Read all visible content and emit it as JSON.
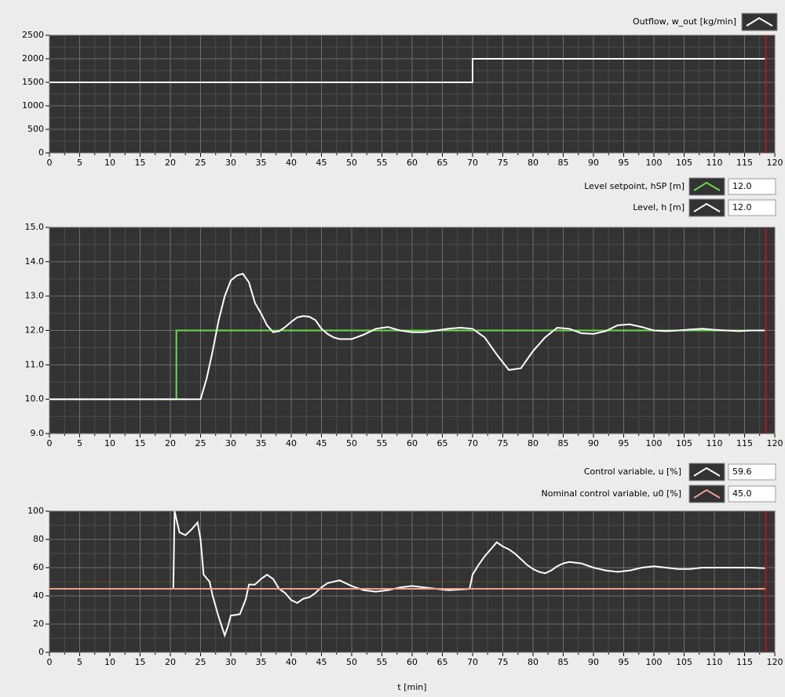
{
  "chart_data": [
    {
      "type": "line",
      "xlim": [
        0,
        120
      ],
      "xticks": [
        0,
        5,
        10,
        15,
        20,
        25,
        30,
        35,
        40,
        45,
        50,
        55,
        60,
        65,
        70,
        75,
        80,
        85,
        90,
        95,
        100,
        105,
        110,
        115,
        120
      ],
      "ylim": [
        0,
        2500
      ],
      "yticks": [
        0,
        500,
        1000,
        1500,
        2000,
        2500
      ],
      "grid": true,
      "cursor_x": 118.5,
      "series": [
        {
          "name": "Outflow, w_out [kg/min]",
          "color": "#ffffff",
          "x": [
            0,
            70,
            70,
            118.5
          ],
          "values": [
            1500,
            1500,
            2000,
            2000
          ]
        }
      ]
    },
    {
      "type": "line",
      "xlim": [
        0,
        120
      ],
      "xticks": [
        0,
        5,
        10,
        15,
        20,
        25,
        30,
        35,
        40,
        45,
        50,
        55,
        60,
        65,
        70,
        75,
        80,
        85,
        90,
        95,
        100,
        105,
        110,
        115,
        120
      ],
      "ylim": [
        9,
        15
      ],
      "yticks": [
        {
          "value": 9,
          "label": "9.0"
        },
        {
          "value": 10,
          "label": "10.0"
        },
        {
          "value": 11,
          "label": "11.0"
        },
        {
          "value": 12,
          "label": "12.0"
        },
        {
          "value": 13,
          "label": "13.0"
        },
        {
          "value": 14,
          "label": "14.0"
        },
        {
          "value": 15,
          "label": "15.0"
        }
      ],
      "grid": true,
      "cursor_x": 118.5,
      "series": [
        {
          "name": "Level setpoint, hSP [m]",
          "color": "#66dd44",
          "readout": "12.0",
          "x": [
            0,
            21,
            21,
            118.5
          ],
          "values": [
            10,
            10,
            12,
            12
          ]
        },
        {
          "name": "Level, h [m]",
          "color": "#ffffff",
          "readout": "12.0",
          "x": [
            0,
            25,
            26,
            27,
            28,
            29,
            30,
            31,
            32,
            33,
            34,
            35,
            36,
            37,
            38,
            39,
            40,
            41,
            42,
            43,
            44,
            45,
            46,
            47,
            48,
            50,
            52,
            54,
            56,
            58,
            60,
            62,
            64,
            66,
            68,
            70,
            72,
            74,
            76,
            78,
            80,
            82,
            84,
            86,
            88,
            90,
            92,
            94,
            96,
            98,
            100,
            102,
            104,
            106,
            108,
            110,
            112,
            114,
            116,
            118.5
          ],
          "values": [
            10,
            10,
            10.6,
            11.4,
            12.3,
            13.0,
            13.45,
            13.6,
            13.65,
            13.4,
            12.8,
            12.5,
            12.15,
            11.95,
            11.98,
            12.1,
            12.25,
            12.38,
            12.42,
            12.4,
            12.3,
            12.05,
            11.9,
            11.8,
            11.75,
            11.75,
            11.88,
            12.05,
            12.1,
            12.0,
            11.95,
            11.95,
            12.0,
            12.05,
            12.08,
            12.05,
            11.8,
            11.3,
            10.85,
            10.9,
            11.4,
            11.8,
            12.08,
            12.05,
            11.92,
            11.9,
            11.98,
            12.15,
            12.18,
            12.1,
            12.0,
            11.98,
            12.0,
            12.03,
            12.05,
            12.02,
            12.0,
            11.98,
            12.0,
            12.0
          ]
        }
      ]
    },
    {
      "type": "line",
      "xlim": [
        0,
        120
      ],
      "xticks": [
        0,
        5,
        10,
        15,
        20,
        25,
        30,
        35,
        40,
        45,
        50,
        55,
        60,
        65,
        70,
        75,
        80,
        85,
        90,
        95,
        100,
        105,
        110,
        115,
        120
      ],
      "ylim": [
        0,
        100
      ],
      "yticks": [
        0,
        20,
        40,
        60,
        80,
        100
      ],
      "grid": true,
      "cursor_x": 118.5,
      "xlabel": "t [min]",
      "series": [
        {
          "name": "Control variable, u [%]",
          "color": "#ffffff",
          "readout": "59.6",
          "x": [
            0,
            20.5,
            20.7,
            21.5,
            22.5,
            23.5,
            24.5,
            25,
            25.5,
            26.5,
            27,
            28,
            29,
            29.5,
            30,
            31.5,
            32.5,
            33,
            34,
            35,
            36,
            37,
            38,
            39,
            40,
            41,
            42,
            43,
            44,
            45,
            46,
            48,
            49,
            50,
            52,
            54,
            56,
            58,
            60,
            62,
            64,
            66,
            68,
            69.5,
            70,
            71,
            72,
            73,
            74,
            75,
            76,
            77,
            78,
            79,
            80,
            81,
            82,
            83,
            84,
            85,
            86,
            88,
            90,
            92,
            94,
            96,
            98,
            100,
            102,
            104,
            106,
            108,
            110,
            112,
            114,
            116,
            118.5
          ],
          "values": [
            45,
            45,
            100,
            85,
            83,
            87,
            92,
            80,
            55,
            50,
            40,
            25,
            12,
            18,
            26,
            27,
            38,
            48,
            48,
            52,
            55,
            52,
            45,
            42,
            37,
            35,
            38,
            39,
            42,
            46,
            49,
            51,
            49,
            47,
            44,
            43,
            44,
            46,
            47,
            46,
            45,
            44,
            44.5,
            45,
            55,
            62,
            68,
            73,
            78,
            75,
            73,
            70,
            66,
            62,
            59,
            57,
            56,
            58,
            61,
            63,
            64,
            63,
            60,
            58,
            57,
            58,
            60,
            61,
            60,
            59,
            59,
            60,
            60,
            60,
            60,
            60,
            59.6
          ]
        },
        {
          "name": "Nominal control variable, u0 [%]",
          "color": "#f0a08c",
          "readout": "45.0",
          "x": [
            0,
            118.5
          ],
          "values": [
            45,
            45
          ]
        }
      ]
    }
  ]
}
